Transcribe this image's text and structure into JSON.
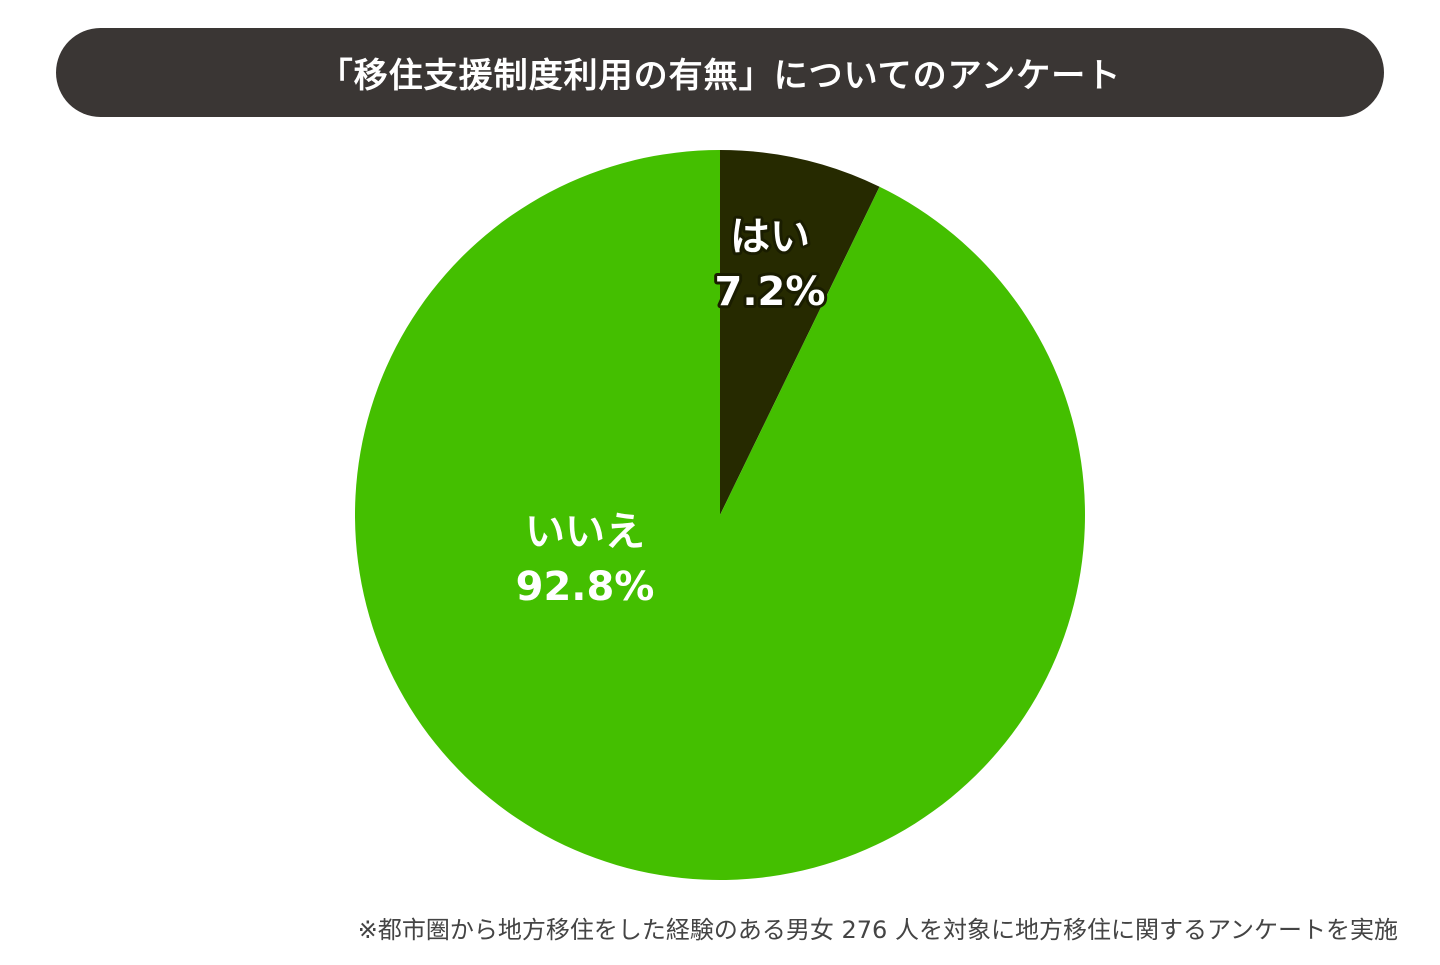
{
  "chart_data": {
    "type": "pie",
    "title": "「移住支援制度利用の有無」についてのアンケート",
    "slices": [
      {
        "label": "はい",
        "value": 7.2,
        "value_label": "7.2%",
        "color": "#262a00"
      },
      {
        "label": "いいえ",
        "value": 92.8,
        "value_label": "92.8%",
        "color": "#44bf00"
      }
    ],
    "start_angle": "12 o'clock, clockwise",
    "legend": "none",
    "footnote": "※都市圏から地方移住をした経験のある男女 276 人を対象に地方移住に関するアンケートを実施"
  },
  "colors": {
    "title_bar": "#3a3634",
    "title_text": "#ffffff",
    "label_text": "#ffffff"
  }
}
